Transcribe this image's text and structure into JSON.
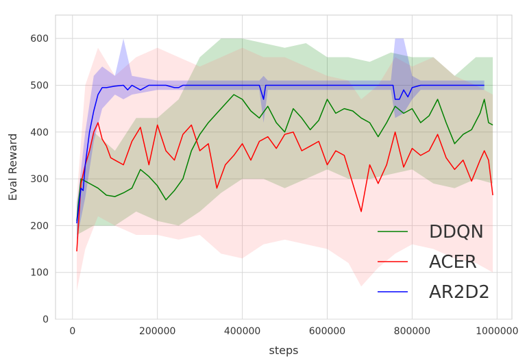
{
  "chart_data": {
    "type": "line",
    "title": "",
    "xlabel": "steps",
    "ylabel": "Eval Reward",
    "xlim": [
      -40000,
      1035000
    ],
    "ylim": [
      0,
      650
    ],
    "x_ticks": [
      0,
      200000,
      400000,
      600000,
      800000,
      1000000
    ],
    "x_tick_labels": [
      "0",
      "200000",
      "400000",
      "600000",
      "800000",
      "1000000"
    ],
    "y_ticks": [
      0,
      100,
      200,
      300,
      400,
      500,
      600
    ],
    "y_tick_labels": [
      "0",
      "100",
      "200",
      "300",
      "400",
      "500",
      "600"
    ],
    "grid": true,
    "legend_position": "bottom-right",
    "series": [
      {
        "name": "DDQN",
        "color": "#008000",
        "band_color": "#008000",
        "points": [
          [
            10000,
            210
          ],
          [
            20000,
            300
          ],
          [
            30000,
            295
          ],
          [
            40000,
            290
          ],
          [
            60000,
            280
          ],
          [
            80000,
            265
          ],
          [
            100000,
            262
          ],
          [
            120000,
            270
          ],
          [
            140000,
            280
          ],
          [
            160000,
            320
          ],
          [
            180000,
            305
          ],
          [
            200000,
            285
          ],
          [
            220000,
            255
          ],
          [
            240000,
            275
          ],
          [
            260000,
            300
          ],
          [
            280000,
            360
          ],
          [
            300000,
            395
          ],
          [
            320000,
            420
          ],
          [
            340000,
            440
          ],
          [
            360000,
            460
          ],
          [
            380000,
            480
          ],
          [
            400000,
            470
          ],
          [
            420000,
            445
          ],
          [
            440000,
            430
          ],
          [
            460000,
            455
          ],
          [
            480000,
            420
          ],
          [
            500000,
            400
          ],
          [
            520000,
            450
          ],
          [
            540000,
            430
          ],
          [
            560000,
            405
          ],
          [
            580000,
            425
          ],
          [
            600000,
            470
          ],
          [
            620000,
            440
          ],
          [
            640000,
            450
          ],
          [
            660000,
            445
          ],
          [
            680000,
            430
          ],
          [
            700000,
            420
          ],
          [
            720000,
            390
          ],
          [
            740000,
            420
          ],
          [
            760000,
            455
          ],
          [
            780000,
            440
          ],
          [
            800000,
            450
          ],
          [
            820000,
            420
          ],
          [
            840000,
            435
          ],
          [
            860000,
            470
          ],
          [
            880000,
            420
          ],
          [
            900000,
            375
          ],
          [
            920000,
            395
          ],
          [
            940000,
            405
          ],
          [
            960000,
            440
          ],
          [
            970000,
            470
          ],
          [
            980000,
            420
          ],
          [
            990000,
            415
          ]
        ],
        "band": [
          [
            10000,
            180,
            250
          ],
          [
            50000,
            200,
            400
          ],
          [
            100000,
            200,
            360
          ],
          [
            150000,
            230,
            430
          ],
          [
            200000,
            210,
            430
          ],
          [
            250000,
            200,
            470
          ],
          [
            300000,
            230,
            560
          ],
          [
            350000,
            270,
            600
          ],
          [
            400000,
            300,
            600
          ],
          [
            450000,
            300,
            590
          ],
          [
            500000,
            280,
            580
          ],
          [
            550000,
            300,
            590
          ],
          [
            600000,
            320,
            560
          ],
          [
            650000,
            300,
            560
          ],
          [
            700000,
            300,
            550
          ],
          [
            750000,
            310,
            570
          ],
          [
            800000,
            320,
            560
          ],
          [
            850000,
            290,
            560
          ],
          [
            900000,
            280,
            520
          ],
          [
            950000,
            300,
            560
          ],
          [
            990000,
            290,
            560
          ]
        ]
      },
      {
        "name": "ACER",
        "color": "#ff0000",
        "band_color": "#ff8080",
        "points": [
          [
            10000,
            145
          ],
          [
            20000,
            290
          ],
          [
            30000,
            330
          ],
          [
            40000,
            360
          ],
          [
            50000,
            400
          ],
          [
            60000,
            420
          ],
          [
            70000,
            385
          ],
          [
            80000,
            370
          ],
          [
            90000,
            345
          ],
          [
            100000,
            340
          ],
          [
            120000,
            330
          ],
          [
            140000,
            380
          ],
          [
            160000,
            410
          ],
          [
            180000,
            330
          ],
          [
            200000,
            415
          ],
          [
            220000,
            360
          ],
          [
            240000,
            340
          ],
          [
            260000,
            395
          ],
          [
            280000,
            415
          ],
          [
            300000,
            360
          ],
          [
            320000,
            375
          ],
          [
            340000,
            280
          ],
          [
            360000,
            330
          ],
          [
            380000,
            350
          ],
          [
            400000,
            375
          ],
          [
            420000,
            340
          ],
          [
            440000,
            380
          ],
          [
            460000,
            390
          ],
          [
            480000,
            365
          ],
          [
            500000,
            395
          ],
          [
            520000,
            400
          ],
          [
            540000,
            360
          ],
          [
            560000,
            370
          ],
          [
            580000,
            380
          ],
          [
            600000,
            330
          ],
          [
            620000,
            360
          ],
          [
            640000,
            350
          ],
          [
            660000,
            290
          ],
          [
            680000,
            230
          ],
          [
            700000,
            330
          ],
          [
            720000,
            290
          ],
          [
            740000,
            330
          ],
          [
            760000,
            400
          ],
          [
            780000,
            325
          ],
          [
            800000,
            365
          ],
          [
            820000,
            350
          ],
          [
            840000,
            360
          ],
          [
            860000,
            395
          ],
          [
            880000,
            345
          ],
          [
            900000,
            320
          ],
          [
            920000,
            340
          ],
          [
            940000,
            295
          ],
          [
            960000,
            340
          ],
          [
            970000,
            360
          ],
          [
            980000,
            340
          ],
          [
            990000,
            265
          ]
        ],
        "band": [
          [
            10000,
            60,
            260
          ],
          [
            30000,
            150,
            500
          ],
          [
            60000,
            220,
            580
          ],
          [
            100000,
            200,
            520
          ],
          [
            150000,
            180,
            560
          ],
          [
            200000,
            180,
            580
          ],
          [
            250000,
            170,
            560
          ],
          [
            300000,
            180,
            540
          ],
          [
            350000,
            140,
            560
          ],
          [
            400000,
            130,
            580
          ],
          [
            450000,
            160,
            560
          ],
          [
            500000,
            170,
            560
          ],
          [
            550000,
            160,
            540
          ],
          [
            600000,
            150,
            520
          ],
          [
            650000,
            120,
            510
          ],
          [
            680000,
            70,
            470
          ],
          [
            720000,
            110,
            500
          ],
          [
            760000,
            140,
            560
          ],
          [
            800000,
            160,
            540
          ],
          [
            850000,
            150,
            560
          ],
          [
            900000,
            130,
            520
          ],
          [
            950000,
            120,
            500
          ],
          [
            990000,
            100,
            480
          ]
        ]
      },
      {
        "name": "AR2D2",
        "color": "#0000ff",
        "band_color": "#0000ff",
        "points": [
          [
            10000,
            205
          ],
          [
            20000,
            280
          ],
          [
            25000,
            275
          ],
          [
            30000,
            330
          ],
          [
            40000,
            400
          ],
          [
            50000,
            445
          ],
          [
            60000,
            480
          ],
          [
            70000,
            495
          ],
          [
            80000,
            495
          ],
          [
            100000,
            498
          ],
          [
            120000,
            500
          ],
          [
            130000,
            490
          ],
          [
            140000,
            500
          ],
          [
            150000,
            495
          ],
          [
            160000,
            490
          ],
          [
            180000,
            500
          ],
          [
            200000,
            500
          ],
          [
            220000,
            500
          ],
          [
            240000,
            495
          ],
          [
            250000,
            495
          ],
          [
            260000,
            500
          ],
          [
            300000,
            500
          ],
          [
            400000,
            500
          ],
          [
            440000,
            500
          ],
          [
            450000,
            470
          ],
          [
            455000,
            500
          ],
          [
            500000,
            500
          ],
          [
            600000,
            500
          ],
          [
            700000,
            500
          ],
          [
            755000,
            500
          ],
          [
            760000,
            470
          ],
          [
            770000,
            470
          ],
          [
            780000,
            490
          ],
          [
            790000,
            475
          ],
          [
            800000,
            495
          ],
          [
            820000,
            500
          ],
          [
            900000,
            500
          ],
          [
            970000,
            500
          ]
        ],
        "band": [
          [
            10000,
            170,
            240
          ],
          [
            30000,
            260,
            400
          ],
          [
            50000,
            380,
            520
          ],
          [
            70000,
            450,
            540
          ],
          [
            100000,
            480,
            520
          ],
          [
            120000,
            470,
            600
          ],
          [
            140000,
            480,
            520
          ],
          [
            200000,
            490,
            510
          ],
          [
            440000,
            490,
            510
          ],
          [
            450000,
            420,
            520
          ],
          [
            460000,
            490,
            510
          ],
          [
            750000,
            490,
            510
          ],
          [
            760000,
            430,
            600
          ],
          [
            780000,
            440,
            600
          ],
          [
            800000,
            470,
            520
          ],
          [
            820000,
            490,
            510
          ],
          [
            970000,
            490,
            510
          ]
        ]
      }
    ]
  }
}
